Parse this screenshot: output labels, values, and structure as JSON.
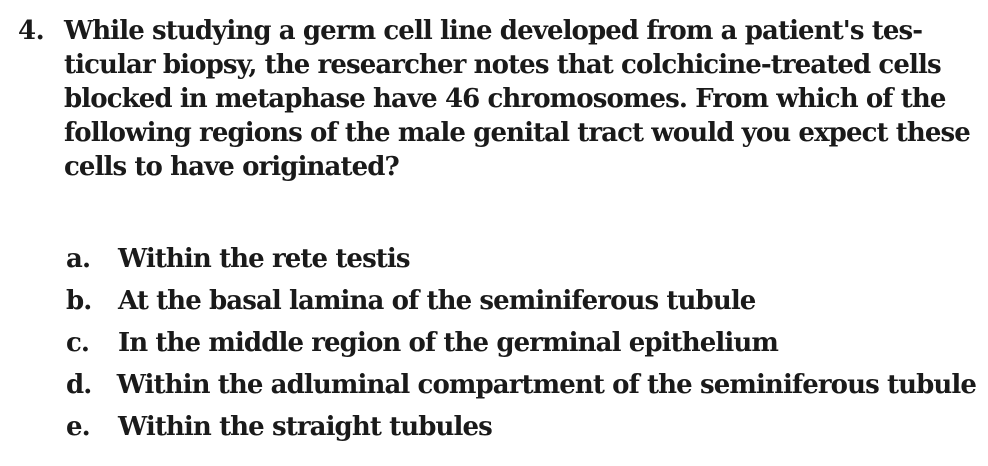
{
  "question": {
    "number": "4.",
    "stem_lines": [
      "While studying a germ cell line developed from a patient's tes-",
      "ticular biopsy, the researcher notes that colchicine-treated cells",
      "blocked in metaphase have 46 chromosomes. From which of the",
      "following regions of the male genital tract would you expect these",
      "cells to have originated?"
    ],
    "options": [
      {
        "letter": "a.",
        "text": "Within the rete testis"
      },
      {
        "letter": "b.",
        "text": "At the basal lamina of the seminiferous tubule"
      },
      {
        "letter": "c.",
        "text": "In the middle region of the germinal epithelium"
      },
      {
        "letter": "d.",
        "text": "Within the adluminal compartment of the seminiferous tubule"
      },
      {
        "letter": "e.",
        "text": "Within the straight tubules"
      }
    ]
  }
}
